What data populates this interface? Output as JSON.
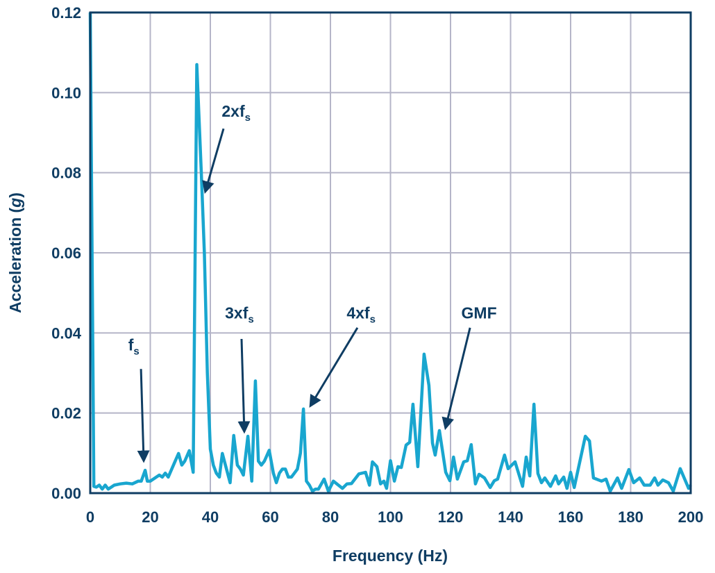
{
  "chart_data": {
    "type": "line",
    "title": "",
    "xlabel": "Frequency (Hz)",
    "ylabel_main": "Acceleration (",
    "ylabel_italic": "g",
    "ylabel_end": ")",
    "xlim": [
      0,
      200
    ],
    "ylim": [
      0,
      0.12
    ],
    "grid": true,
    "xticks": [
      "0",
      "20",
      "40",
      "60",
      "80",
      "100",
      "120",
      "140",
      "160",
      "180",
      "200"
    ],
    "yticks": [
      "0.00",
      "0.02",
      "0.04",
      "0.06",
      "0.08",
      "0.10",
      "0.12"
    ],
    "colors": {
      "line": "#19a6cf",
      "text": "#0f3d63",
      "grid": "#b5b5c8",
      "frame": "#0f3d63"
    },
    "series": [
      {
        "x": [
          0,
          1.2,
          2,
          3,
          4,
          5,
          6,
          7,
          8,
          10,
          12,
          14,
          16,
          17,
          18.3,
          19,
          20,
          22,
          23,
          24,
          25,
          26,
          28,
          29.4,
          30.5,
          31.5,
          33,
          34.3,
          35.5,
          37,
          38,
          39,
          40,
          41,
          42,
          43,
          44,
          46.6,
          47.8,
          49,
          50,
          51,
          52.5,
          53.8,
          55,
          56,
          57,
          58,
          59.6,
          61,
          62,
          63,
          64,
          65,
          66,
          67,
          68,
          69,
          70,
          71,
          72,
          73,
          74,
          75,
          76,
          77.9,
          79.3,
          81,
          84,
          85.5,
          87,
          89.5,
          91.7,
          93,
          94,
          95.5,
          96.7,
          97.8,
          98.7,
          100,
          101.3,
          102.5,
          103.6,
          105.2,
          106.4,
          107.5,
          109.1,
          111.2,
          112.8,
          114,
          114.9,
          116.3,
          118.4,
          119.8,
          121,
          122.3,
          124.4,
          125.6,
          126.9,
          128.3,
          129.5,
          131.3,
          133.2,
          134.6,
          135.7,
          138,
          139.2,
          141.5,
          144,
          145.2,
          146.4,
          147.8,
          149.1,
          150.3,
          151.4,
          153.3,
          155,
          156,
          157.7,
          158.8,
          160,
          161.2,
          164.9,
          166.3,
          167.6,
          170.3,
          171.8,
          173.2,
          175.6,
          177,
          179.4,
          181,
          183,
          184.5,
          186.5,
          188,
          189.1,
          190.7,
          192.6,
          194.2,
          196.5,
          199.3,
          200
        ],
        "y": [
          0.12,
          0.0017,
          0.0015,
          0.002,
          0.001,
          0.002,
          0.001,
          0.0015,
          0.002,
          0.0023,
          0.0025,
          0.0023,
          0.003,
          0.003,
          0.0057,
          0.003,
          0.003,
          0.004,
          0.0045,
          0.004,
          0.005,
          0.004,
          0.0075,
          0.0099,
          0.007,
          0.008,
          0.0106,
          0.0052,
          0.107,
          0.08,
          0.06,
          0.03,
          0.011,
          0.007,
          0.005,
          0.004,
          0.0099,
          0.0026,
          0.0144,
          0.007,
          0.006,
          0.0045,
          0.0142,
          0.003,
          0.028,
          0.008,
          0.007,
          0.008,
          0.0107,
          0.005,
          0.0026,
          0.005,
          0.006,
          0.006,
          0.004,
          0.004,
          0.005,
          0.006,
          0.01,
          0.021,
          0.003,
          0.002,
          0.0005,
          0.001,
          0.001,
          0.0035,
          0.0005,
          0.003,
          0.0012,
          0.0023,
          0.0024,
          0.0048,
          0.0052,
          0.002,
          0.0078,
          0.0066,
          0.0023,
          0.003,
          0.0012,
          0.0081,
          0.003,
          0.0066,
          0.0064,
          0.012,
          0.0127,
          0.0222,
          0.0066,
          0.0347,
          0.0269,
          0.0125,
          0.0095,
          0.0156,
          0.0052,
          0.0031,
          0.009,
          0.0035,
          0.0078,
          0.0081,
          0.0121,
          0.0023,
          0.0047,
          0.0038,
          0.0014,
          0.0031,
          0.0035,
          0.0095,
          0.0061,
          0.0078,
          0.0017,
          0.009,
          0.0043,
          0.0222,
          0.0049,
          0.0026,
          0.0038,
          0.0017,
          0.0043,
          0.0023,
          0.004,
          0.0012,
          0.0052,
          0.0014,
          0.0142,
          0.013,
          0.0038,
          0.003,
          0.0035,
          0.0005,
          0.0038,
          0.0012,
          0.0059,
          0.0026,
          0.0038,
          0.002,
          0.002,
          0.0038,
          0.002,
          0.0033,
          0.0026,
          0.0005,
          0.0061,
          0.0012,
          0.002
        ]
      }
    ],
    "annotations": [
      {
        "text": "f",
        "sub": "s",
        "label": [
          14.5,
          0.037
        ],
        "tail": [
          16.9,
          0.031
        ],
        "tip": [
          17.8,
          0.0083
        ]
      },
      {
        "text": "2xf",
        "sub": "s",
        "label": [
          48.6,
          0.0954
        ],
        "tail": [
          44.4,
          0.091
        ],
        "tip": [
          38.4,
          0.0755
        ]
      },
      {
        "text": "3xf",
        "sub": "s",
        "label": [
          49.7,
          0.045
        ],
        "tail": [
          50.4,
          0.0385
        ],
        "tip": [
          51.3,
          0.0156
        ]
      },
      {
        "text": "4xf",
        "sub": "s",
        "label": [
          90.2,
          0.045
        ],
        "tail": [
          89,
          0.0413
        ],
        "tip": [
          73.5,
          0.022
        ]
      },
      {
        "text": "GMF",
        "sub": "",
        "label": [
          129.5,
          0.045
        ],
        "tail": [
          126.5,
          0.0413
        ],
        "tip": [
          118.4,
          0.0165
        ]
      }
    ]
  }
}
